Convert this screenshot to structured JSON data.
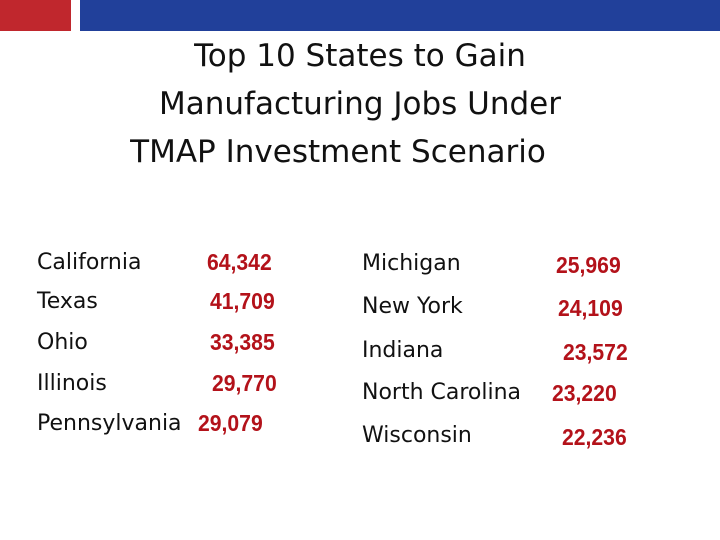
{
  "title_lines": [
    "Top 10 States to Gain",
    "Manufacturing Jobs Under",
    "TMAP Investment Scenario"
  ],
  "left_column": [
    {
      "state": "California",
      "jobs": "64,342"
    },
    {
      "state": "Texas",
      "jobs": "41,709"
    },
    {
      "state": "Ohio",
      "jobs": "33,385"
    },
    {
      "state": "Illinois",
      "jobs": "29,770"
    },
    {
      "state": "Pennsylvania",
      "jobs": "29,079"
    }
  ],
  "right_column": [
    {
      "state": "Michigan",
      "jobs": "25,969"
    },
    {
      "state": "New York",
      "jobs": "24,109"
    },
    {
      "state": "Indiana",
      "jobs": "23,572"
    },
    {
      "state": "North Carolina",
      "jobs": "23,220"
    },
    {
      "state": "Wisconsin",
      "jobs": "22,236"
    }
  ]
}
